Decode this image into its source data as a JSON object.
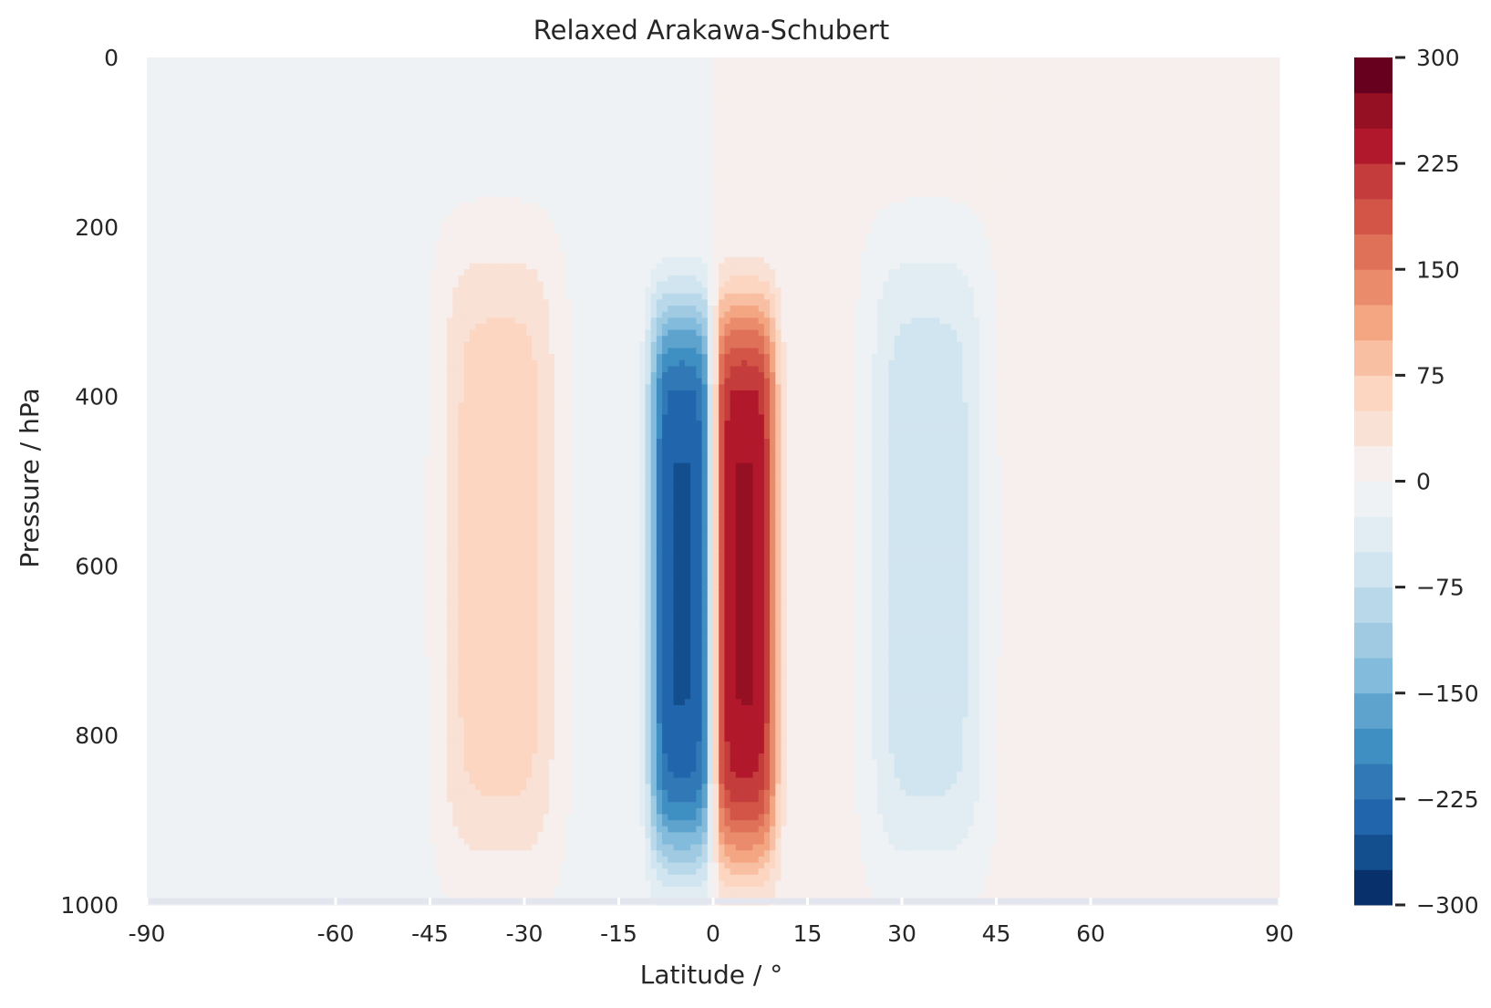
{
  "chart_data": {
    "type": "heatmap",
    "subtype": "filled-contour",
    "title": "Relaxed Arakawa-Schubert",
    "xlabel": "Latitude / °",
    "ylabel": "Pressure / hPa",
    "xlim": [
      -90,
      90
    ],
    "ylim": [
      1000,
      0
    ],
    "y_inverted": true,
    "xticks": [
      -90,
      -60,
      -45,
      -30,
      -15,
      0,
      15,
      30,
      45,
      60,
      90
    ],
    "xtick_labels": [
      "-90",
      "-60",
      "-45",
      "-30",
      "-15",
      "0",
      "15",
      "30",
      "45",
      "60",
      "90"
    ],
    "yticks": [
      0,
      200,
      400,
      600,
      800,
      1000
    ],
    "ytick_labels": [
      "0",
      "200",
      "400",
      "600",
      "800",
      "1000"
    ],
    "grid": false,
    "colormap": "RdBu_r",
    "colorbar": {
      "range": [
        -300,
        300
      ],
      "level_step": 25,
      "ticks": [
        300,
        225,
        150,
        75,
        0,
        -75,
        -150,
        -225,
        -300
      ],
      "tick_labels": [
        "300",
        "225",
        "150",
        "75",
        "0",
        "−75",
        "−150",
        "−225",
        "−300"
      ],
      "colors": [
        "#08306b",
        "#134f8f",
        "#2166ac",
        "#3079b6",
        "#3f8fc2",
        "#5ea2ce",
        "#82bbdb",
        "#9fcae2",
        "#b9d9ea",
        "#d1e5f0",
        "#e1ecf3",
        "#eef2f5",
        "#f7efed",
        "#f9e1d5",
        "#fcd6c1",
        "#f8bfa3",
        "#f4a582",
        "#ea8c6c",
        "#df7159",
        "#d25547",
        "#c43c3c",
        "#b2182b",
        "#951022",
        "#67001f"
      ],
      "color_levels": [
        -300,
        -275,
        -250,
        -225,
        -200,
        -175,
        -150,
        -125,
        -100,
        -75,
        -50,
        -25,
        0,
        25,
        50,
        75,
        100,
        125,
        150,
        175,
        200,
        225,
        250,
        275,
        300
      ]
    },
    "field_structure": {
      "description": "antisymmetric about equator",
      "extrema": [
        {
          "lat": -5,
          "pressure": 620,
          "value": -235
        },
        {
          "lat": 5,
          "pressure": 620,
          "value": 235
        },
        {
          "lat": -34,
          "pressure": 590,
          "value": 55
        },
        {
          "lat": 34,
          "pressure": 590,
          "value": -55
        }
      ]
    }
  }
}
